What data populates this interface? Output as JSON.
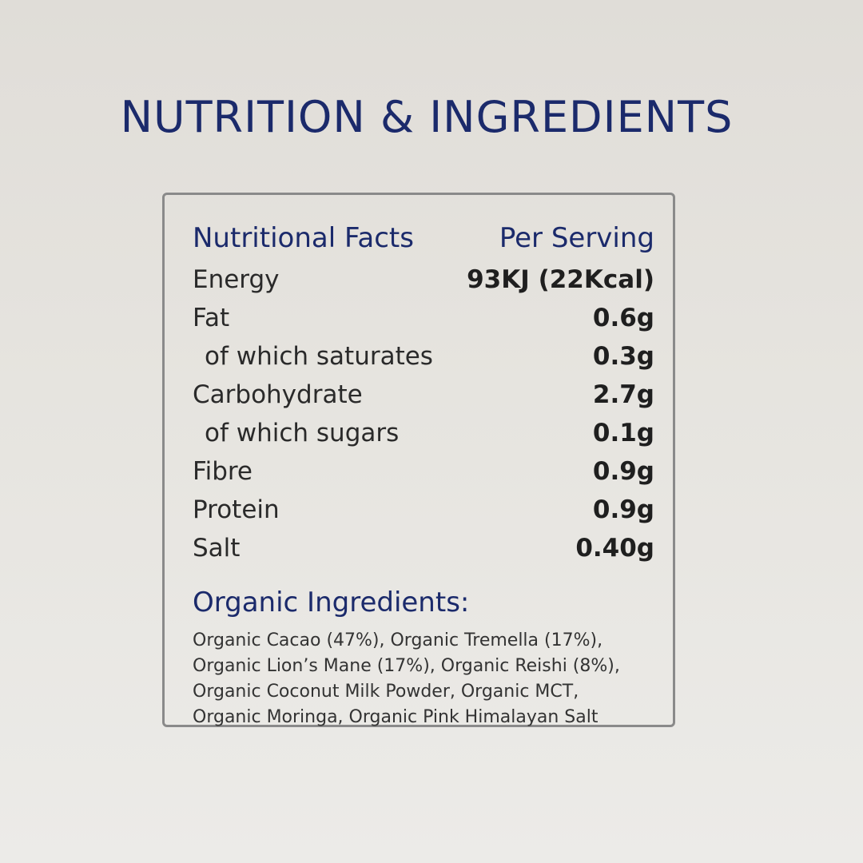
{
  "page": {
    "title": "NUTRITION & INGREDIENTS"
  },
  "nutrition": {
    "header_label": "Nutritional Facts",
    "header_value": "Per Serving",
    "rows": [
      {
        "name": "Energy",
        "value": "93KJ (22Kcal)"
      },
      {
        "name": "Fat",
        "value": "0.6g"
      },
      {
        "name": "of which saturates",
        "value": "0.3g",
        "indented": true
      },
      {
        "name": "Carbohydrate",
        "value": "2.7g"
      },
      {
        "name": "of which sugars",
        "value": "0.1g",
        "indented": true
      },
      {
        "name": "Fibre",
        "value": "0.9g"
      },
      {
        "name": "Protein",
        "value": "0.9g"
      },
      {
        "name": "Salt",
        "value": "0.40g"
      }
    ]
  },
  "ingredients": {
    "heading": "Organic Ingredients:",
    "lines": [
      "Organic Cacao (47%), Organic Tremella (17%),",
      "Organic Lion’s Mane (17%), Organic Reishi (8%),",
      "Organic Coconut Milk Powder, Organic MCT,",
      "Organic Moringa, Organic Pink Himalayan Salt"
    ]
  },
  "colors": {
    "title_navy": "#1b2a6b",
    "text_dark": "#2a2a2a",
    "border_gray": "#8a8a8a"
  }
}
